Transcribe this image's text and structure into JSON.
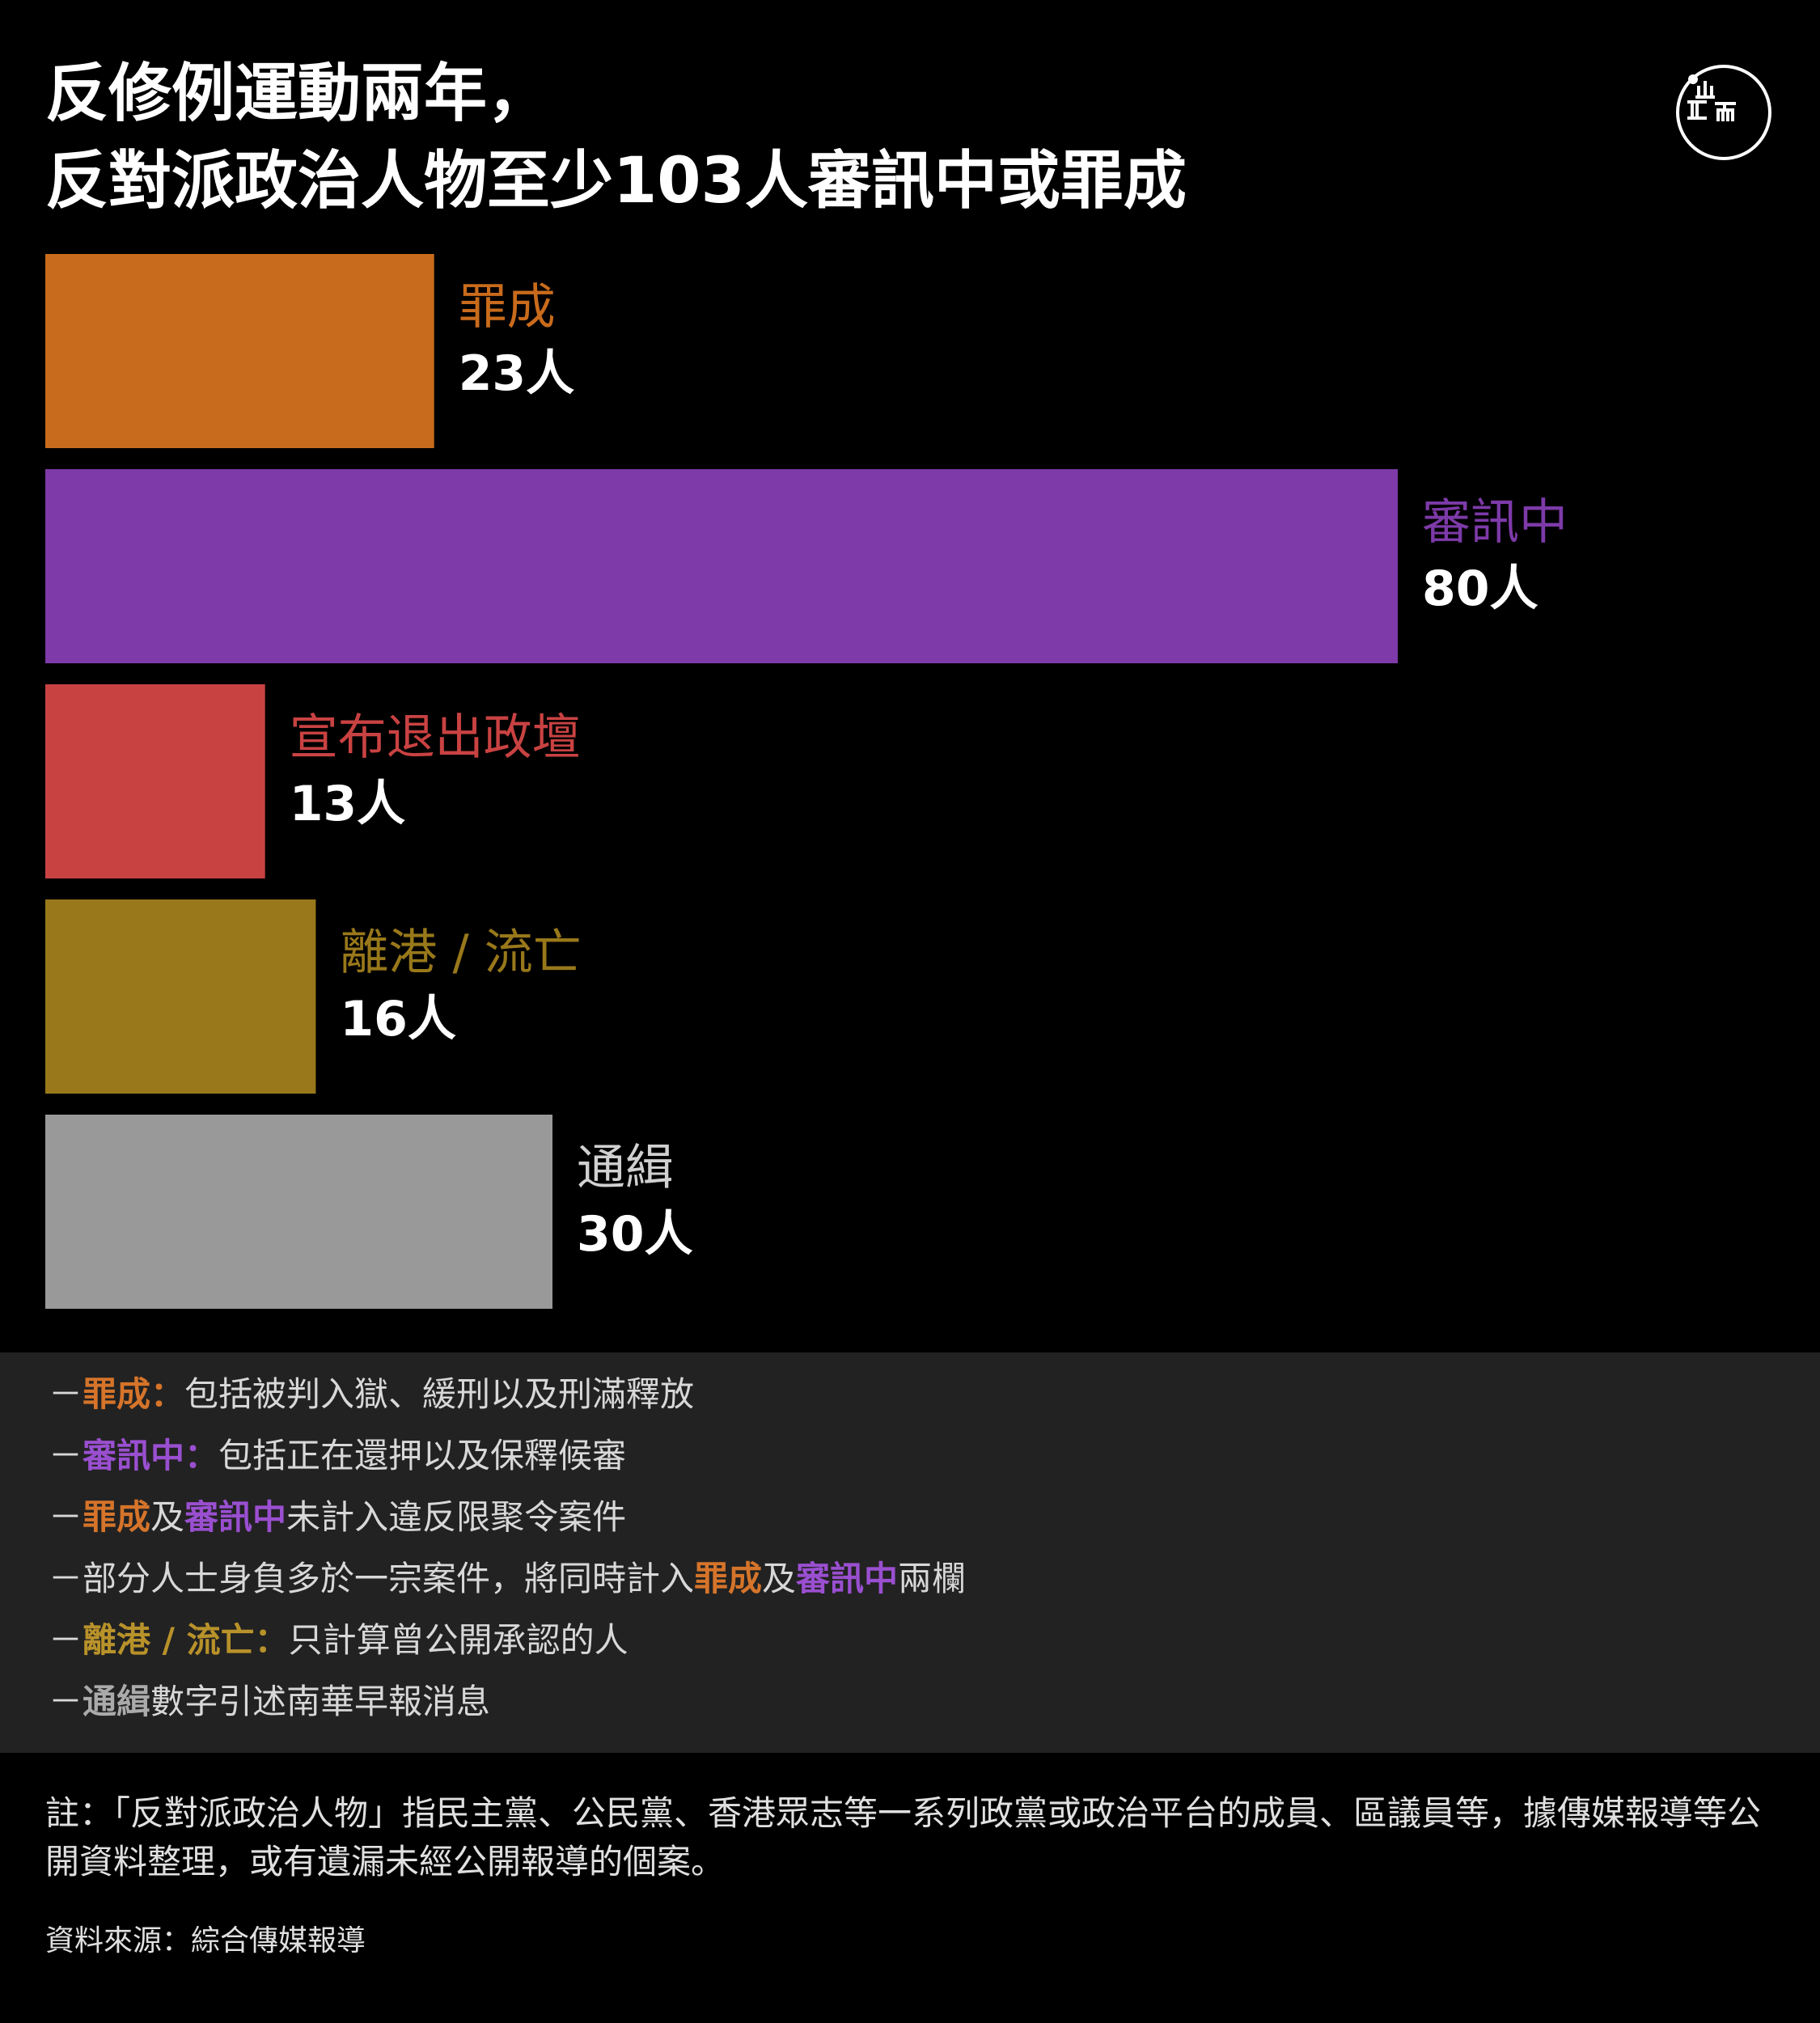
{
  "title": {
    "line1": "反修例運動兩年，",
    "line2": "反對派政治人物至少103人審訊中或罪成"
  },
  "chart_data": {
    "type": "bar",
    "orientation": "horizontal",
    "categories": [
      "罪成",
      "審訊中",
      "宣布退出政壇",
      "離港 / 流亡",
      "通緝"
    ],
    "values": [
      23,
      80,
      13,
      16,
      30
    ],
    "value_labels": [
      "23人",
      "80人",
      "13人",
      "16人",
      "30人"
    ],
    "colors": [
      "#c96b1c",
      "#7d3aa8",
      "#c94242",
      "#98781a",
      "#999999"
    ],
    "grid": false
  },
  "legend_notes": [
    {
      "segments": [
        {
          "text": "－",
          "color": "#d8d8d8",
          "bold": false
        },
        {
          "text": "罪成：",
          "color": "#d5742a",
          "bold": true
        },
        {
          "text": "包括被判入獄、緩刑以及刑滿釋放",
          "color": "#d8d8d8",
          "bold": false
        }
      ]
    },
    {
      "segments": [
        {
          "text": "－",
          "color": "#d8d8d8",
          "bold": false
        },
        {
          "text": "審訊中：",
          "color": "#9a4fd0",
          "bold": true
        },
        {
          "text": "包括正在還押以及保釋候審",
          "color": "#d8d8d8",
          "bold": false
        }
      ]
    },
    {
      "segments": [
        {
          "text": "－",
          "color": "#d8d8d8",
          "bold": false
        },
        {
          "text": "罪成",
          "color": "#d5742a",
          "bold": true
        },
        {
          "text": "及",
          "color": "#d8d8d8",
          "bold": false
        },
        {
          "text": "審訊中",
          "color": "#9a4fd0",
          "bold": true
        },
        {
          "text": "未計入違反限聚令案件",
          "color": "#d8d8d8",
          "bold": false
        }
      ]
    },
    {
      "segments": [
        {
          "text": "－部分人士身負多於一宗案件，將同時計入",
          "color": "#d8d8d8",
          "bold": false
        },
        {
          "text": "罪成",
          "color": "#d5742a",
          "bold": true
        },
        {
          "text": "及",
          "color": "#d8d8d8",
          "bold": false
        },
        {
          "text": "審訊中",
          "color": "#9a4fd0",
          "bold": true
        },
        {
          "text": "兩欄",
          "color": "#d8d8d8",
          "bold": false
        }
      ]
    },
    {
      "segments": [
        {
          "text": "－",
          "color": "#d8d8d8",
          "bold": false
        },
        {
          "text": "離港 / 流亡：",
          "color": "#b8922a",
          "bold": true
        },
        {
          "text": "只計算曾公開承認的人",
          "color": "#d8d8d8",
          "bold": false
        }
      ]
    },
    {
      "segments": [
        {
          "text": "－",
          "color": "#d8d8d8",
          "bold": false
        },
        {
          "text": "通緝",
          "color": "#aaaaaa",
          "bold": true
        },
        {
          "text": "數字引述南華早報消息",
          "color": "#d8d8d8",
          "bold": false
        }
      ]
    }
  ],
  "footnote": "註：「反對派政治人物」指民主黨、公民黨、香港眾志等一系列政黨或政治平台的成員、區議員等，據傳媒報導等公開資料整理，或有遺漏未經公開報導的個案。",
  "source": "資料來源：綜合傳媒報導"
}
